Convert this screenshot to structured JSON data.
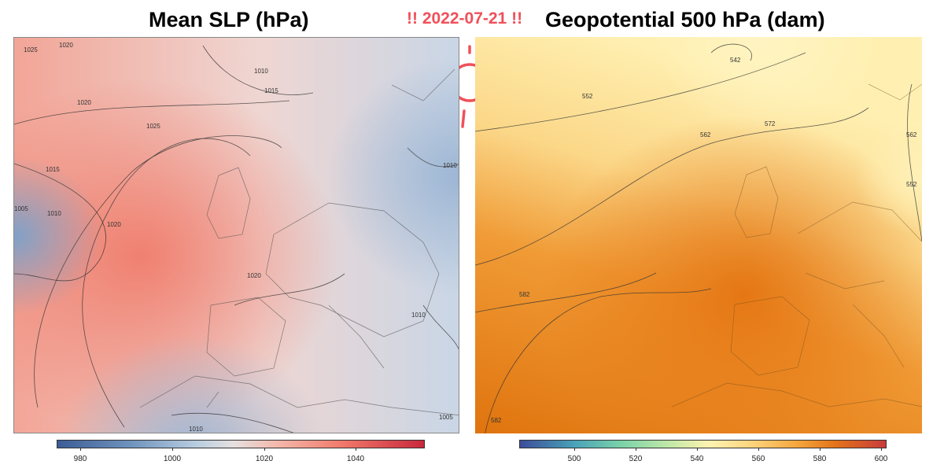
{
  "header": {
    "left_title": "Mean SLP (hPa)",
    "right_title": "Geopotential 500 hPa (dam)",
    "date_badge": "!! 2022-07-21 !!"
  },
  "colors": {
    "accent_red": "#f0505a",
    "slp_high": "#f0786a",
    "slp_low": "#6f93bd",
    "geo_high": "#e4741a",
    "geo_low": "#fff2b0"
  },
  "icons": [
    "sun-icon"
  ],
  "left_map": {
    "contour_labels": [
      "1025",
      "1020",
      "1010",
      "1015",
      "1020",
      "1025",
      "1015",
      "1010",
      "1005",
      "1020",
      "1020",
      "1010",
      "1010",
      "1010",
      "1005"
    ],
    "colorbar": {
      "ticks": [
        "980",
        "1000",
        "1020",
        "1040"
      ],
      "values": [
        980,
        1000,
        1020,
        1040
      ],
      "range": [
        975,
        1055
      ]
    }
  },
  "right_map": {
    "contour_labels": [
      "542",
      "552",
      "562",
      "572",
      "562",
      "552",
      "582",
      "582"
    ],
    "colorbar": {
      "ticks": [
        "500",
        "520",
        "540",
        "560",
        "580",
        "600"
      ],
      "values": [
        500,
        520,
        540,
        560,
        580,
        600
      ],
      "range": [
        488,
        602
      ]
    }
  }
}
